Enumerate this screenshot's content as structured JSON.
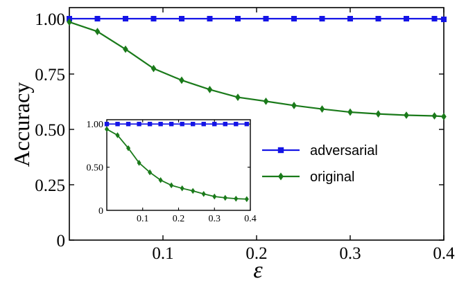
{
  "chart_data": [
    {
      "type": "line",
      "xlabel": "ε",
      "ylabel": "Accuracy",
      "xlim": [
        0.0,
        0.4
      ],
      "ylim": [
        0.0,
        1.05
      ],
      "xticks": [
        0.1,
        0.2,
        0.3,
        0.4
      ],
      "xtick_labels": [
        "0.1",
        "0.2",
        "0.3",
        "0.4"
      ],
      "yticks": [
        0,
        0.25,
        0.5,
        0.75,
        1.0
      ],
      "ytick_labels": [
        "0",
        "0.25",
        "0.50",
        "0.75",
        "1.00"
      ],
      "grid": false,
      "legend_position": "center-right",
      "series": [
        {
          "name": "adversarial",
          "color": "#1414e6",
          "marker": "square",
          "x": [
            0.0,
            0.03,
            0.06,
            0.09,
            0.12,
            0.15,
            0.18,
            0.21,
            0.24,
            0.27,
            0.3,
            0.33,
            0.36,
            0.39,
            0.4
          ],
          "y": [
            1.0,
            1.0,
            1.0,
            1.0,
            1.0,
            1.0,
            1.0,
            1.0,
            1.0,
            1.0,
            1.0,
            1.0,
            1.0,
            1.0,
            0.997
          ]
        },
        {
          "name": "original",
          "color": "#1a7a1a",
          "marker": "diamond",
          "x": [
            0.0,
            0.03,
            0.06,
            0.09,
            0.12,
            0.15,
            0.18,
            0.21,
            0.24,
            0.27,
            0.3,
            0.33,
            0.36,
            0.39,
            0.4
          ],
          "y": [
            0.985,
            0.942,
            0.862,
            0.775,
            0.722,
            0.68,
            0.645,
            0.627,
            0.608,
            0.592,
            0.578,
            0.57,
            0.564,
            0.561,
            0.558
          ]
        }
      ]
    },
    {
      "type": "line",
      "inset": true,
      "xlim": [
        0.0,
        0.4
      ],
      "ylim": [
        0.0,
        1.05
      ],
      "xticks": [
        0.1,
        0.2,
        0.3,
        0.4
      ],
      "xtick_labels": [
        "0.1",
        "0.2",
        "0.3",
        "0.4"
      ],
      "yticks": [
        0,
        0.5,
        1.0
      ],
      "ytick_labels": [
        "0",
        "0.50",
        "1.00"
      ],
      "grid": false,
      "series": [
        {
          "name": "adversarial",
          "color": "#1414e6",
          "marker": "square",
          "x": [
            0.0,
            0.03,
            0.06,
            0.09,
            0.12,
            0.15,
            0.18,
            0.21,
            0.24,
            0.27,
            0.3,
            0.33,
            0.36,
            0.39
          ],
          "y": [
            1.0,
            1.0,
            1.0,
            1.0,
            1.0,
            1.0,
            1.0,
            1.0,
            1.0,
            1.0,
            1.0,
            1.0,
            1.0,
            1.0
          ]
        },
        {
          "name": "original",
          "color": "#1a7a1a",
          "marker": "diamond",
          "x": [
            0.0,
            0.03,
            0.06,
            0.09,
            0.12,
            0.15,
            0.18,
            0.21,
            0.24,
            0.27,
            0.3,
            0.33,
            0.36,
            0.39
          ],
          "y": [
            0.94,
            0.87,
            0.72,
            0.55,
            0.44,
            0.35,
            0.29,
            0.255,
            0.225,
            0.19,
            0.16,
            0.145,
            0.135,
            0.13
          ]
        }
      ]
    }
  ]
}
